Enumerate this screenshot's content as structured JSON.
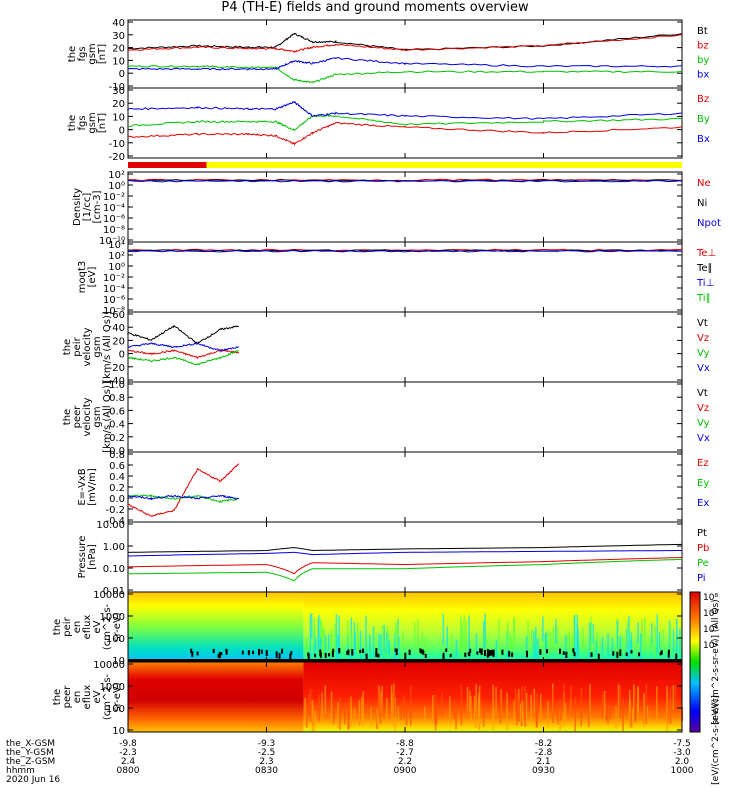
{
  "title": "P4 (TH-E) fields and ground moments overview",
  "date": "2020 Jun 16",
  "colors": {
    "black": "#000000",
    "red": "#e00000",
    "green": "#00c000",
    "blue": "#0000e0"
  },
  "xaxis": {
    "start_hhmm": "0800",
    "end_hhmm": "1000",
    "tick_times": [
      "0800",
      "0830",
      "0900",
      "0930",
      "1000"
    ],
    "rows": [
      {
        "label": "the_X-GSM",
        "values": [
          "-9.8",
          "-9.3",
          "-8.8",
          "-8.2",
          "-7.5"
        ]
      },
      {
        "label": "the_Y-GSM",
        "values": [
          "-2.3",
          "-2.5",
          "-2.7",
          "-2.8",
          "-3.0"
        ]
      },
      {
        "label": "the_Z-GSM",
        "values": [
          "2.4",
          "2.3",
          "2.2",
          "2.1",
          "2.0"
        ]
      },
      {
        "label": "hhmm",
        "values": [
          "0800",
          "0830",
          "0900",
          "0930",
          "1000"
        ]
      }
    ]
  },
  "status_bar": {
    "segments": [
      {
        "from": "0800",
        "to": "0817",
        "color": "#e00000"
      },
      {
        "from": "0817",
        "to": "1000",
        "color": "#ffff00"
      }
    ]
  },
  "colorbar": {
    "labels": [
      "10⁸",
      "10⁶",
      "10⁴",
      "10²"
    ],
    "title": "[eV/(cm^2-s-sr-eV)] (All Qs)",
    "bottom_title": "[eV/(cm^2-s-sr-eV)]"
  },
  "chart_data": [
    {
      "type": "line",
      "id": "fgs_gsm",
      "ylabel": [
        "the",
        "fgs",
        "gsm",
        "[nT]"
      ],
      "yticks": [
        "40",
        "30",
        "20",
        "10",
        "0",
        "-10"
      ],
      "ylim": [
        -10,
        40
      ],
      "x_time": [
        "0800",
        "0815",
        "0826",
        "0832",
        "0836",
        "0840",
        "0845",
        "0900",
        "0930",
        "1000"
      ],
      "series": [
        {
          "name": "Bt",
          "color": "#000000",
          "values": [
            19,
            21,
            20,
            20,
            30,
            24,
            24,
            18,
            21,
            30
          ]
        },
        {
          "name": "bz",
          "color": "#e00000",
          "values": [
            18,
            20,
            19,
            19,
            17,
            20,
            22,
            18,
            21,
            29
          ]
        },
        {
          "name": "by",
          "color": "#00c000",
          "values": [
            6,
            6,
            5,
            5,
            -4,
            -6,
            0,
            2,
            2,
            2
          ]
        },
        {
          "name": "bx",
          "color": "#0000e0",
          "values": [
            4,
            4,
            4,
            4,
            10,
            8,
            12,
            8,
            6,
            6
          ]
        }
      ]
    },
    {
      "type": "line",
      "id": "fgs_gsm2",
      "ylabel": [
        "the",
        "fgs",
        "gsm",
        "[nT]"
      ],
      "yticks": [
        "30",
        "20",
        "10",
        "0",
        "-10",
        "-20"
      ],
      "ylim": [
        -20,
        30
      ],
      "x_time": [
        "0800",
        "0815",
        "0826",
        "0832",
        "0836",
        "0840",
        "0845",
        "0900",
        "0930",
        "1000"
      ],
      "series": [
        {
          "name": "Bz",
          "color": "#e00000",
          "values": [
            -5,
            -3,
            -3,
            -4,
            -10,
            -2,
            5,
            2,
            -2,
            2
          ]
        },
        {
          "name": "By",
          "color": "#00c000",
          "values": [
            3,
            6,
            6,
            6,
            0,
            10,
            10,
            4,
            6,
            8
          ]
        },
        {
          "name": "Bx",
          "color": "#0000e0",
          "values": [
            15,
            16,
            15,
            15,
            20,
            10,
            12,
            10,
            8,
            12
          ]
        }
      ]
    },
    {
      "type": "line",
      "id": "density",
      "ylabel": [
        "Density",
        "[1/cc]",
        "[cm-3]"
      ],
      "yticks": [
        "10²",
        "10⁰",
        "10⁻²",
        "10⁻⁴",
        "10⁻⁶",
        "10⁻⁸",
        "10⁻¹⁰"
      ],
      "log": true,
      "series": [
        {
          "name": "Ne",
          "color": "#e00000",
          "values": []
        },
        {
          "name": "Ni",
          "color": "#000000",
          "values": []
        },
        {
          "name": "Npot",
          "color": "#0000e0",
          "values": []
        }
      ]
    },
    {
      "type": "line",
      "id": "moqt3",
      "ylabel": [
        "moqt3",
        "[eV]"
      ],
      "yticks": [
        "10⁴",
        "10²",
        "10⁰",
        "10⁻²",
        "10⁻⁴",
        "10⁻⁶",
        "10⁻⁸"
      ],
      "log": true,
      "series": [
        {
          "name": "Te⊥",
          "color": "#e00000",
          "values": []
        },
        {
          "name": "Te∥",
          "color": "#000000",
          "values": []
        },
        {
          "name": "Ti⊥",
          "color": "#0000e0",
          "values": []
        },
        {
          "name": "Ti∥",
          "color": "#00c000",
          "values": []
        }
      ]
    },
    {
      "type": "line",
      "id": "peir_vel",
      "ylabel": [
        "the",
        "peir",
        "velocity",
        "gsm",
        "[km/s (All Qs)]"
      ],
      "yticks": [
        "60",
        "40",
        "20",
        "0",
        "-20",
        "-40"
      ],
      "ylim": [
        -40,
        60
      ],
      "x_time": [
        "0800",
        "0805",
        "0810",
        "0815",
        "0820",
        "0824"
      ],
      "series": [
        {
          "name": "Vt",
          "color": "#000000",
          "values": [
            30,
            20,
            40,
            15,
            35,
            40
          ]
        },
        {
          "name": "Vz",
          "color": "#e00000",
          "values": [
            5,
            0,
            5,
            -5,
            5,
            2
          ]
        },
        {
          "name": "Vy",
          "color": "#00c000",
          "values": [
            -5,
            -10,
            -5,
            -15,
            -5,
            5
          ]
        },
        {
          "name": "Vx",
          "color": "#0000e0",
          "values": [
            10,
            15,
            10,
            15,
            5,
            10
          ]
        }
      ]
    },
    {
      "type": "line",
      "id": "peer_vel",
      "ylabel": [
        "the",
        "peer",
        "velocity",
        "gsm",
        "[km/s (All Qs)]"
      ],
      "yticks": [
        "1.0",
        "0.8",
        "0.6",
        "0.4",
        "0.2",
        "0.0"
      ],
      "ylim": [
        0,
        1
      ],
      "series": [
        {
          "name": "Vt",
          "color": "#000000",
          "values": []
        },
        {
          "name": "Vz",
          "color": "#e00000",
          "values": []
        },
        {
          "name": "Vy",
          "color": "#00c000",
          "values": []
        },
        {
          "name": "Vx",
          "color": "#0000e0",
          "values": []
        }
      ]
    },
    {
      "type": "line",
      "id": "e_field",
      "ylabel": [
        "E=-VxB",
        "[mV/m]"
      ],
      "yticks": [
        "0.8",
        "0.6",
        "0.4",
        "0.2",
        "0.0",
        "-0.2",
        "-0.4"
      ],
      "ylim": [
        -0.4,
        0.8
      ],
      "x_time": [
        "0800",
        "0805",
        "0810",
        "0815",
        "0820",
        "0824"
      ],
      "series": [
        {
          "name": "Ez",
          "color": "#e00000",
          "values": [
            -0.1,
            -0.3,
            -0.2,
            0.5,
            0.3,
            0.6
          ]
        },
        {
          "name": "Ey",
          "color": "#00c000",
          "values": [
            0.05,
            0.05,
            0.0,
            0.05,
            -0.05,
            0.0
          ]
        },
        {
          "name": "Ex",
          "color": "#0000e0",
          "values": [
            0.05,
            0.0,
            0.05,
            0.0,
            0.05,
            0.0
          ]
        }
      ]
    },
    {
      "type": "line",
      "id": "pressure",
      "ylabel": [
        "Pressure",
        "[nPa]"
      ],
      "log": true,
      "yticks": [
        "10.00",
        "1.00",
        "0.10",
        "0.01"
      ],
      "ylim": [
        0.01,
        10
      ],
      "x_time": [
        "0800",
        "0830",
        "0836",
        "0840",
        "0900",
        "0930",
        "1000"
      ],
      "series": [
        {
          "name": "Pt",
          "color": "#000000",
          "values": [
            0.5,
            0.6,
            0.8,
            0.6,
            0.7,
            0.8,
            1.1
          ]
        },
        {
          "name": "Pb",
          "color": "#e00000",
          "values": [
            0.12,
            0.15,
            0.06,
            0.18,
            0.15,
            0.2,
            0.3
          ]
        },
        {
          "name": "Pe",
          "color": "#00c000",
          "values": [
            0.06,
            0.07,
            0.03,
            0.1,
            0.1,
            0.15,
            0.25
          ]
        },
        {
          "name": "Pi",
          "color": "#0000e0",
          "values": [
            0.35,
            0.45,
            0.5,
            0.4,
            0.5,
            0.55,
            0.6
          ]
        }
      ]
    },
    {
      "type": "heatmap",
      "id": "peir_eflux",
      "ylabel": [
        "the",
        "peir",
        "en",
        "eflux",
        "eV",
        "(cm^2-s-",
        "sr-eV)"
      ],
      "yticks": [
        "10000",
        "1000",
        "100",
        "10"
      ]
    },
    {
      "type": "heatmap",
      "id": "peer_eflux",
      "ylabel": [
        "the",
        "peer",
        "en",
        "eflux",
        "eV",
        "(cm^2-s-",
        "sr-eV)"
      ],
      "yticks": [
        "10000",
        "1000",
        "100",
        "10"
      ]
    }
  ]
}
